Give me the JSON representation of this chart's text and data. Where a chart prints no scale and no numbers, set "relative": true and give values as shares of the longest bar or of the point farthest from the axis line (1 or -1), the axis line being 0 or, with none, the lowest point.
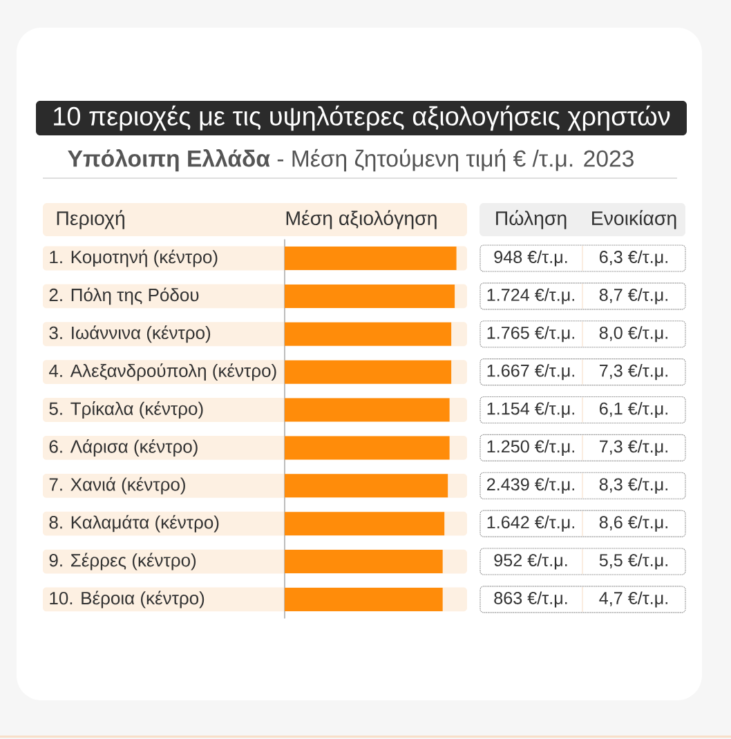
{
  "chart_data": [
    {
      "type": "bar",
      "orientation": "horizontal",
      "relative": true,
      "title": "10 περιοχές με τις υψηλότερες αξιολογήσεις χρηστών",
      "subtitle": "**Υπόλοιπη Ελλάδα** - Μέση ζητούμενη τιμή € /τ.μ. 2023",
      "ylabel": "Περιοχή",
      "xlabel": "Μέση αξιολόγηση",
      "categories": [
        "1. Κομοτηνή (κέντρο)",
        "2. Πόλη της Ρόδου",
        "3. Ιωάννινα (κέντρο)",
        "4. Αλεξανδρούπολη (κέντρο)",
        "5. Τρίκαλα (κέντρο)",
        "6. Λάρισα (κέντρο)",
        "7. Χανιά (κέντρο)",
        "8. Καλαμάτα (κέντρο)",
        "9. Σέρρες (κέντρο)",
        "10. Βέροια (κέντρο)"
      ],
      "values": [
        1,
        0.99,
        0.97,
        0.97,
        0.96,
        0.96,
        0.95,
        0.93,
        0.92,
        0.92
      ],
      "color": "#ff8c0a"
    },
    {
      "type": "other",
      "title": "Πώληση",
      "annotations": [
        "948 €/τ.μ.",
        "1.724 €/τ.μ.",
        "1.765 €/τ.μ.",
        "1.667 €/τ.μ.",
        "1.154 €/τ.μ.",
        "1.250 €/τ.μ.",
        "2.439 €/τ.μ.",
        "1.642 €/τ.μ.",
        "952 €/τ.μ.",
        "863 €/τ.μ."
      ]
    },
    {
      "type": "other",
      "title": "Ενοικίαση",
      "annotations": [
        "6,3 €/τ.μ.",
        "8,7 €/τ.μ.",
        "8,0 €/τ.μ.",
        "7,3 €/τ.μ.",
        "6,1 €/τ.μ.",
        "7,3 €/τ.μ.",
        "8,3 €/τ.μ.",
        "8,6 €/τ.μ.",
        "5,5 €/τ.μ.",
        "4,7 €/τ.μ."
      ]
    }
  ]
}
